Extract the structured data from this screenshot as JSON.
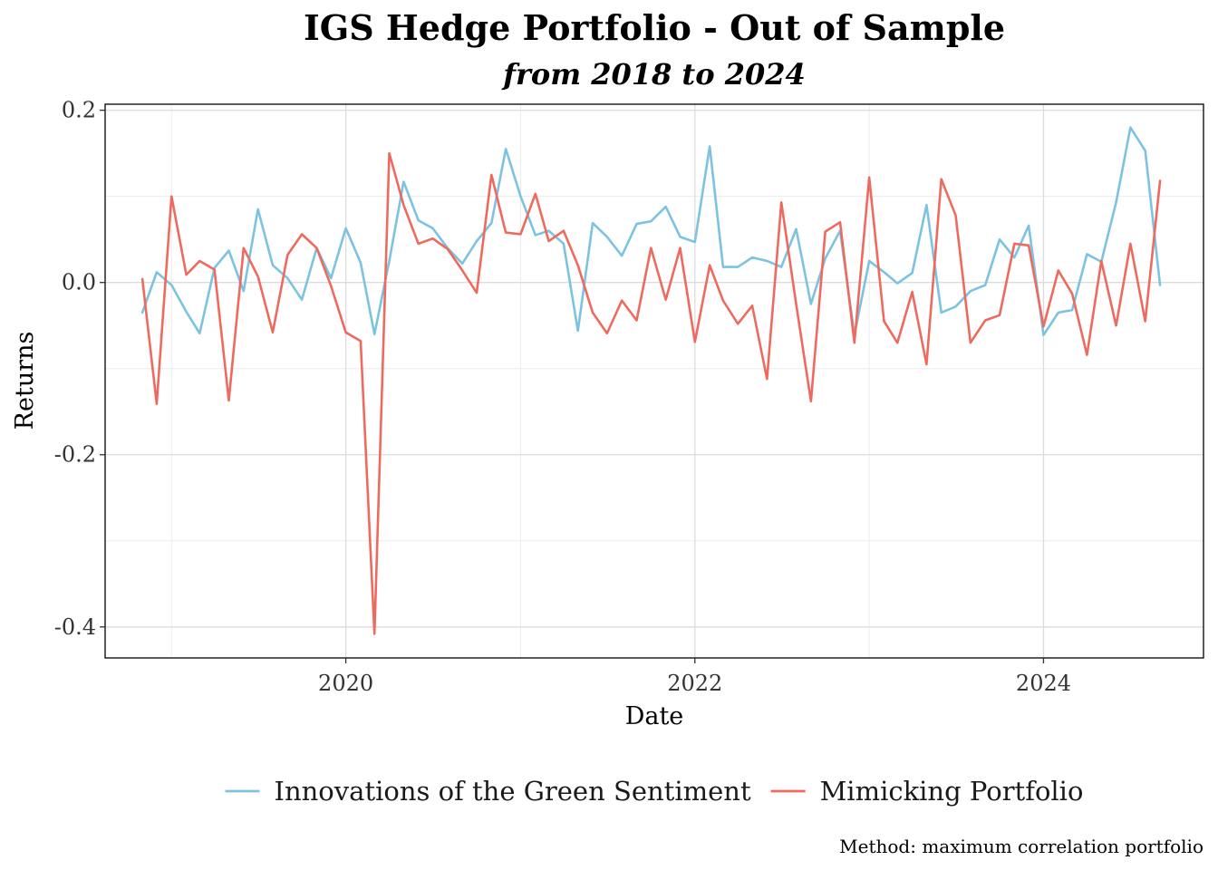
{
  "chart_data": {
    "type": "line",
    "title": "IGS Hedge Portfolio - Out of Sample",
    "subtitle": "from 2018 to 2024",
    "xlabel": "Date",
    "ylabel": "Returns",
    "caption": "Method: maximum correlation portfolio",
    "xlim": [
      "2018-08-15",
      "2024-12-01"
    ],
    "ylim": [
      -0.436,
      0.207
    ],
    "x_ticks": [
      {
        "value": "2020-01-01",
        "label": "2020"
      },
      {
        "value": "2022-01-01",
        "label": "2022"
      },
      {
        "value": "2024-01-01",
        "label": "2024"
      }
    ],
    "y_ticks": [
      {
        "value": 0.2,
        "label": "0.2"
      },
      {
        "value": 0.0,
        "label": "0.0"
      },
      {
        "value": -0.2,
        "label": "-0.2"
      },
      {
        "value": -0.4,
        "label": "-0.4"
      }
    ],
    "grid": true,
    "legend_position": "bottom",
    "x": [
      "2018-11-01",
      "2018-12-01",
      "2019-01-01",
      "2019-02-01",
      "2019-03-01",
      "2019-04-01",
      "2019-05-01",
      "2019-06-01",
      "2019-07-01",
      "2019-08-01",
      "2019-09-01",
      "2019-10-01",
      "2019-11-01",
      "2019-12-01",
      "2020-01-01",
      "2020-02-01",
      "2020-03-01",
      "2020-04-01",
      "2020-05-01",
      "2020-06-01",
      "2020-07-01",
      "2020-08-01",
      "2020-09-01",
      "2020-10-01",
      "2020-11-01",
      "2020-12-01",
      "2021-01-01",
      "2021-02-01",
      "2021-03-01",
      "2021-04-01",
      "2021-05-01",
      "2021-06-01",
      "2021-07-01",
      "2021-08-01",
      "2021-09-01",
      "2021-10-01",
      "2021-11-01",
      "2021-12-01",
      "2022-01-01",
      "2022-02-01",
      "2022-03-01",
      "2022-04-01",
      "2022-05-01",
      "2022-06-01",
      "2022-07-01",
      "2022-08-01",
      "2022-09-01",
      "2022-10-01",
      "2022-11-01",
      "2022-12-01",
      "2023-01-01",
      "2023-02-01",
      "2023-03-01",
      "2023-04-01",
      "2023-05-01",
      "2023-06-01",
      "2023-07-01",
      "2023-08-01",
      "2023-09-01",
      "2023-10-01",
      "2023-11-01",
      "2023-12-01",
      "2024-01-01",
      "2024-02-01",
      "2024-03-01",
      "2024-04-01",
      "2024-05-01",
      "2024-06-01",
      "2024-07-01",
      "2024-08-01",
      "2024-09-01"
    ],
    "series": [
      {
        "name": "Innovations of the Green Sentiment",
        "color": "#7CC3E1",
        "values": [
          -0.035,
          0.012,
          -0.003,
          -0.034,
          -0.059,
          0.017,
          0.037,
          -0.01,
          0.085,
          0.02,
          0.005,
          -0.02,
          0.04,
          0.005,
          0.063,
          0.023,
          -0.06,
          0.025,
          0.117,
          0.072,
          0.063,
          0.04,
          0.022,
          0.048,
          0.069,
          0.155,
          0.1,
          0.055,
          0.06,
          0.045,
          -0.056,
          0.069,
          0.053,
          0.031,
          0.068,
          0.071,
          0.088,
          0.053,
          0.047,
          0.158,
          0.018,
          0.018,
          0.029,
          0.025,
          0.018,
          0.062,
          -0.025,
          0.028,
          0.06,
          -0.061,
          0.025,
          0.012,
          -0.001,
          0.011,
          0.09,
          -0.035,
          -0.028,
          -0.01,
          -0.003,
          0.05,
          0.029,
          0.066,
          -0.061,
          -0.035,
          -0.032,
          0.033,
          0.024,
          0.093,
          0.18,
          0.153,
          -0.003
        ]
      },
      {
        "name": "Mimicking Portfolio",
        "color": "#EE6A5F",
        "values": [
          0.004,
          -0.141,
          0.1,
          0.009,
          0.025,
          0.015,
          -0.137,
          0.04,
          0.007,
          -0.058,
          0.032,
          0.056,
          0.04,
          -0.004,
          -0.058,
          -0.068,
          -0.408,
          0.15,
          0.09,
          0.045,
          0.051,
          0.039,
          0.014,
          -0.012,
          0.125,
          0.058,
          0.056,
          0.103,
          0.048,
          0.06,
          0.02,
          -0.035,
          -0.059,
          -0.021,
          -0.044,
          0.04,
          -0.02,
          0.04,
          -0.069,
          0.02,
          -0.021,
          -0.048,
          -0.027,
          -0.112,
          0.093,
          -0.025,
          -0.138,
          0.059,
          0.07,
          -0.07,
          0.122,
          -0.045,
          -0.07,
          -0.011,
          -0.095,
          0.12,
          0.078,
          -0.07,
          -0.044,
          -0.038,
          0.045,
          0.043,
          -0.051,
          0.014,
          -0.013,
          -0.084,
          0.025,
          -0.05,
          0.045,
          -0.045,
          0.118
        ]
      }
    ]
  }
}
